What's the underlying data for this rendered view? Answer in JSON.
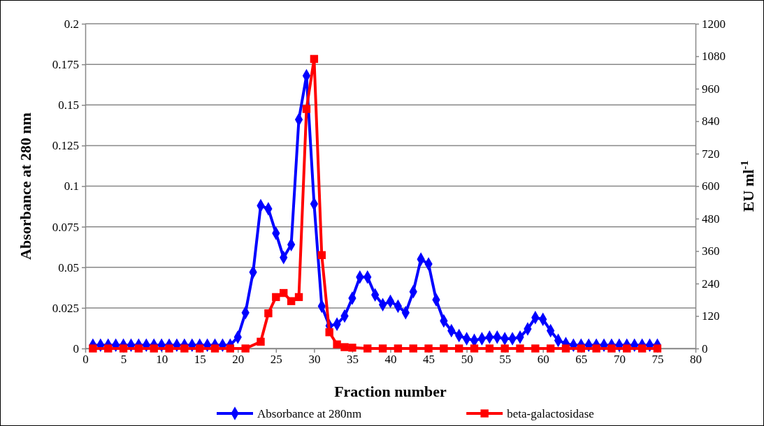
{
  "chart_data": {
    "type": "line",
    "xlabel": "Fraction number",
    "ylabel": "Absorbance at 280 nm",
    "y2label": "EU ml$^{-1}$",
    "xlim": [
      0,
      80
    ],
    "xticks": [
      0,
      5,
      10,
      15,
      20,
      25,
      30,
      35,
      40,
      45,
      50,
      55,
      60,
      65,
      70,
      75,
      80
    ],
    "ylim": [
      0,
      0.2
    ],
    "yticks": [
      0,
      0.025,
      0.05,
      0.075,
      0.1,
      0.125,
      0.15,
      0.175,
      0.2
    ],
    "y2lim": [
      0,
      1200
    ],
    "y2ticks": [
      0,
      120,
      240,
      360,
      480,
      600,
      720,
      840,
      960,
      1080,
      1200
    ],
    "grid": "y",
    "legend": "bottom",
    "line_style": "solid",
    "series": [
      {
        "name": "Absorbance at 280nm",
        "color": "#0000ff",
        "marker": "diamond",
        "x": [
          1,
          2,
          3,
          4,
          5,
          6,
          7,
          8,
          9,
          10,
          11,
          12,
          13,
          14,
          15,
          16,
          17,
          18,
          19,
          20,
          21,
          22,
          23,
          24,
          25,
          26,
          27,
          28,
          29,
          30,
          31,
          32,
          33,
          34,
          35,
          36,
          37,
          38,
          39,
          40,
          41,
          42,
          43,
          44,
          45,
          46,
          47,
          48,
          49,
          50,
          51,
          52,
          53,
          54,
          55,
          56,
          57,
          58,
          59,
          60,
          61,
          62,
          63,
          64,
          65,
          66,
          67,
          68,
          69,
          70,
          71,
          72,
          73,
          74,
          75
        ],
        "values": [
          0.002,
          0.002,
          0.002,
          0.002,
          0.002,
          0.002,
          0.002,
          0.002,
          0.002,
          0.002,
          0.002,
          0.002,
          0.002,
          0.002,
          0.002,
          0.002,
          0.002,
          0.002,
          0.002,
          0.007,
          0.022,
          0.047,
          0.088,
          0.086,
          0.071,
          0.056,
          0.064,
          0.141,
          0.168,
          0.089,
          0.026,
          0.014,
          0.015,
          0.02,
          0.031,
          0.044,
          0.044,
          0.033,
          0.027,
          0.029,
          0.026,
          0.022,
          0.035,
          0.055,
          0.052,
          0.03,
          0.017,
          0.011,
          0.008,
          0.006,
          0.005,
          0.006,
          0.007,
          0.007,
          0.006,
          0.006,
          0.007,
          0.012,
          0.019,
          0.018,
          0.011,
          0.005,
          0.003,
          0.002,
          0.002,
          0.002,
          0.002,
          0.002,
          0.002,
          0.002,
          0.002,
          0.002,
          0.002,
          0.002,
          0.002
        ]
      },
      {
        "name": "beta-galactosidase",
        "color": "#ff0000",
        "marker": "square",
        "axis": "y2",
        "x": [
          1,
          3,
          5,
          7,
          9,
          11,
          13,
          15,
          17,
          19,
          21,
          23,
          24,
          25,
          26,
          27,
          28,
          29,
          30,
          31,
          32,
          33,
          34,
          35,
          37,
          39,
          41,
          43,
          45,
          47,
          49,
          51,
          53,
          55,
          57,
          59,
          61,
          63,
          65,
          67,
          69,
          71,
          73,
          75
        ],
        "values": [
          0,
          0,
          0,
          0,
          0,
          0,
          0,
          0,
          0,
          0,
          0,
          25,
          130,
          190,
          205,
          175,
          190,
          885,
          1070,
          345,
          60,
          15,
          5,
          3,
          0,
          0,
          0,
          0,
          0,
          0,
          0,
          0,
          0,
          0,
          0,
          0,
          0,
          0,
          0,
          0,
          0,
          0,
          0,
          0
        ]
      }
    ]
  }
}
